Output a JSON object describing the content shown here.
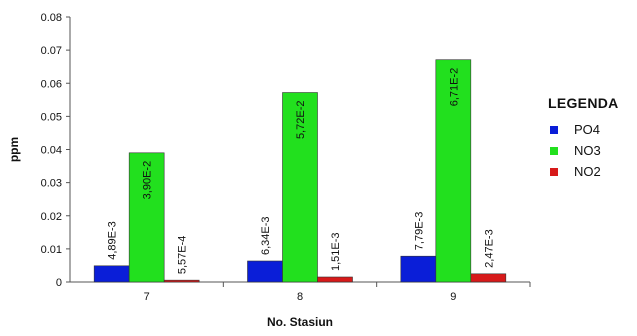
{
  "chart_data": {
    "type": "bar",
    "xlabel": "No. Stasiun",
    "ylabel": "ppm",
    "ylim": [
      0,
      0.08
    ],
    "yticks": [
      "0",
      "0.01",
      "0.02",
      "0.03",
      "0.04",
      "0.05",
      "0.06",
      "0.07",
      "0.08"
    ],
    "categories": [
      "7",
      "8",
      "9"
    ],
    "series": [
      {
        "name": "PO4",
        "color": "#0a1ed8",
        "values": [
          0.00489,
          0.00634,
          0.00779
        ],
        "labels": [
          "4,89E-3",
          "6,34E-3",
          "7,79E-3"
        ]
      },
      {
        "name": "NO3",
        "color": "#22e01e",
        "values": [
          0.039,
          0.0572,
          0.0671
        ],
        "labels": [
          "3,90E-2",
          "5,72E-2",
          "6,71E-2"
        ]
      },
      {
        "name": "NO2",
        "color": "#d71a1a",
        "values": [
          0.000557,
          0.00151,
          0.00247
        ],
        "labels": [
          "5,57E-4",
          "1,51E-3",
          "2,47E-3"
        ]
      }
    ],
    "legend_title": "LEGENDA",
    "legend_position": "right",
    "grid": false
  }
}
